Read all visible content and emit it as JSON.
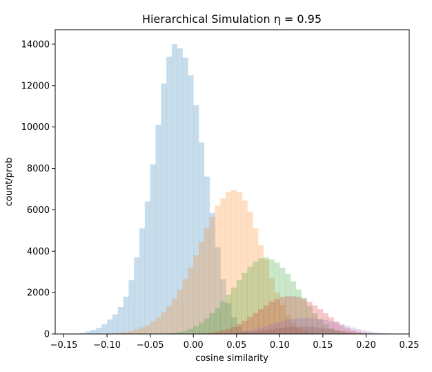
{
  "chart_data": {
    "type": "bar",
    "title": "Hierarchical Simulation  η = 0.95",
    "xlabel": "cosine similarity",
    "ylabel": "count/prob",
    "xlim": [
      -0.16,
      0.25
    ],
    "ylim": [
      0,
      14700
    ],
    "grid": false,
    "legend": "none",
    "x_ticks": [
      -0.15,
      -0.1,
      -0.05,
      0.0,
      0.05,
      0.1,
      0.15,
      0.2,
      0.25
    ],
    "x_tick_labels": [
      "−0.15",
      "−0.10",
      "−0.05",
      "0.00",
      "0.05",
      "0.10",
      "0.15",
      "0.20",
      "0.25"
    ],
    "y_ticks": [
      0,
      2000,
      4000,
      6000,
      8000,
      10000,
      12000,
      14000
    ],
    "y_tick_labels": [
      "0",
      "2000",
      "4000",
      "6000",
      "8000",
      "10000",
      "12000",
      "14000"
    ],
    "bin_width": 0.00625,
    "bin_start": -0.15,
    "series": [
      {
        "color": "#1f77b4",
        "alpha": 0.25,
        "values": [
          0,
          0,
          20,
          50,
          120,
          200,
          300,
          470,
          700,
          950,
          1300,
          1800,
          2600,
          3700,
          5100,
          6400,
          8200,
          10100,
          12100,
          13400,
          14000,
          13800,
          13350,
          12500,
          11050,
          9250,
          7600,
          5850,
          4200,
          2650,
          1500,
          800,
          350,
          120,
          40,
          10,
          0,
          0,
          0,
          0,
          0,
          0,
          0,
          0,
          0,
          0,
          0,
          0,
          0,
          0,
          0,
          0,
          0,
          0,
          0,
          0,
          0,
          0,
          0,
          0,
          0,
          0,
          0,
          0,
          0,
          0
        ]
      },
      {
        "color": "#ff7f0e",
        "alpha": 0.25,
        "values": [
          0,
          0,
          0,
          0,
          0,
          0,
          5,
          10,
          20,
          40,
          60,
          100,
          150,
          220,
          320,
          420,
          600,
          800,
          1050,
          1350,
          1700,
          2150,
          2650,
          3200,
          3800,
          4450,
          5100,
          5650,
          6200,
          6550,
          6850,
          6950,
          6850,
          6450,
          5900,
          5100,
          4300,
          3600,
          2700,
          2000,
          1400,
          900,
          550,
          300,
          170,
          90,
          40,
          15,
          5,
          0,
          0,
          0,
          0,
          0,
          0,
          0,
          0,
          0,
          0,
          0,
          0,
          0,
          0,
          0,
          0,
          0
        ]
      },
      {
        "color": "#2ca02c",
        "alpha": 0.25,
        "values": [
          0,
          0,
          0,
          0,
          0,
          0,
          0,
          0,
          0,
          0,
          0,
          0,
          0,
          0,
          0,
          0,
          0,
          5,
          15,
          30,
          60,
          100,
          160,
          250,
          380,
          550,
          750,
          1000,
          1250,
          1550,
          1900,
          2250,
          2600,
          2950,
          3250,
          3500,
          3650,
          3700,
          3600,
          3450,
          3200,
          2900,
          2550,
          2150,
          1750,
          1350,
          1000,
          700,
          450,
          280,
          150,
          80,
          30,
          10,
          0,
          0,
          0,
          0,
          0,
          0,
          0,
          0,
          0,
          0,
          0,
          0
        ]
      },
      {
        "color": "#d62728",
        "alpha": 0.25,
        "values": [
          0,
          0,
          0,
          0,
          0,
          0,
          0,
          0,
          0,
          0,
          0,
          0,
          0,
          0,
          0,
          0,
          0,
          0,
          0,
          0,
          0,
          0,
          0,
          5,
          10,
          20,
          40,
          70,
          110,
          170,
          250,
          350,
          480,
          640,
          820,
          1000,
          1200,
          1380,
          1550,
          1680,
          1780,
          1830,
          1820,
          1780,
          1680,
          1550,
          1380,
          1200,
          1000,
          800,
          600,
          420,
          280,
          180,
          110,
          60,
          30,
          15,
          5,
          0,
          0,
          0,
          0,
          0,
          0,
          0
        ]
      },
      {
        "color": "#9467bd",
        "alpha": 0.25,
        "values": [
          0,
          0,
          0,
          0,
          0,
          0,
          0,
          0,
          0,
          0,
          0,
          0,
          0,
          0,
          0,
          0,
          0,
          0,
          0,
          0,
          0,
          0,
          0,
          0,
          0,
          0,
          0,
          5,
          10,
          20,
          35,
          55,
          85,
          125,
          175,
          240,
          310,
          390,
          470,
          550,
          620,
          680,
          720,
          750,
          770,
          770,
          750,
          720,
          680,
          620,
          550,
          470,
          390,
          310,
          240,
          175,
          125,
          85,
          55,
          35,
          20,
          10,
          5,
          0,
          0,
          0
        ]
      },
      {
        "color": "#8c564b",
        "alpha": 0.25,
        "values": [
          0,
          0,
          0,
          0,
          0,
          0,
          0,
          0,
          0,
          0,
          0,
          0,
          0,
          0,
          0,
          0,
          0,
          0,
          0,
          0,
          0,
          0,
          0,
          0,
          0,
          0,
          0,
          0,
          0,
          5,
          10,
          20,
          35,
          55,
          80,
          110,
          145,
          185,
          225,
          265,
          300,
          330,
          350,
          360,
          360,
          350,
          330,
          300,
          265,
          225,
          185,
          145,
          110,
          80,
          55,
          35,
          20,
          10,
          5,
          0,
          0,
          0,
          0,
          0,
          0,
          0
        ]
      }
    ]
  }
}
